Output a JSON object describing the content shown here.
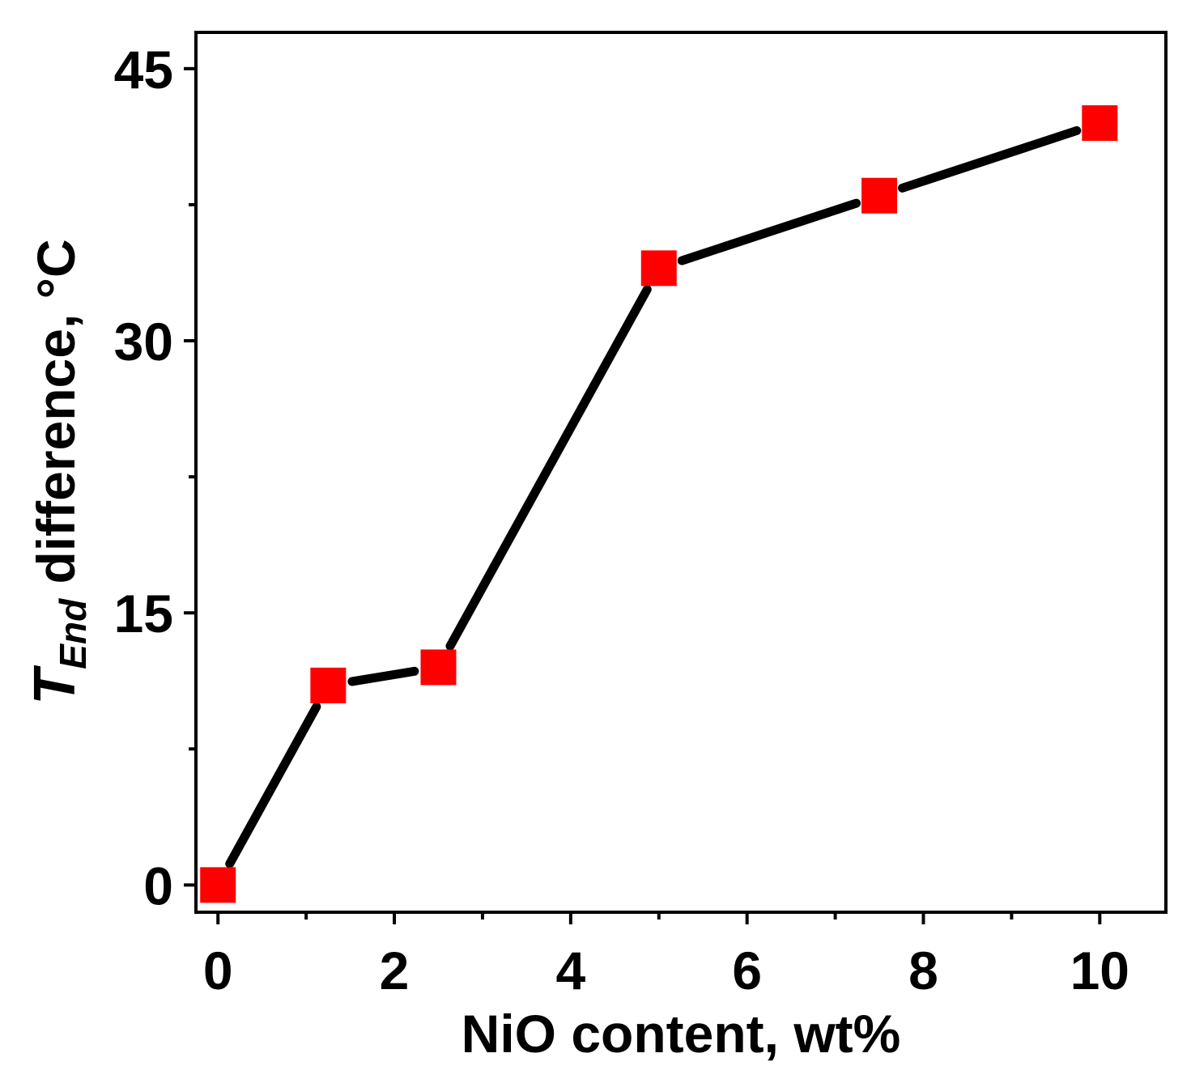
{
  "chart_data": {
    "type": "line",
    "title": "",
    "xlabel": "NiO content, wt%",
    "ylabel": {
      "symbol": "T",
      "subscript": "End",
      "text": " difference, °C"
    },
    "xlim": [
      -0.25,
      10.75
    ],
    "ylim": [
      -1.5,
      47
    ],
    "x_ticks": [
      0,
      2,
      4,
      6,
      8,
      10
    ],
    "x_minor_ticks": [
      1,
      3,
      5,
      7,
      9
    ],
    "y_ticks": [
      0,
      15,
      30,
      45
    ],
    "y_minor_ticks": [
      7.5,
      22.5,
      37.5
    ],
    "grid": false,
    "legend": "none",
    "series": [
      {
        "x": [
          0,
          1.25,
          2.5,
          5,
          7.5,
          10
        ],
        "y": [
          0,
          11,
          12,
          34,
          38,
          42
        ],
        "line_color": "#000000",
        "marker": "square",
        "marker_color": "#ff0000"
      }
    ]
  }
}
